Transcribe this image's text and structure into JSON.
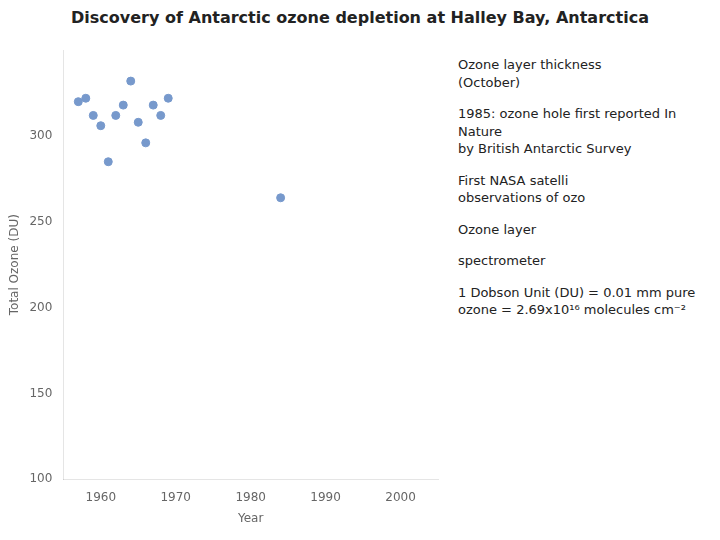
{
  "chart_data": {
    "type": "scatter",
    "title": "Discovery of Antarctic ozone depletion at Halley Bay, Antarctica",
    "xlabel": "Year",
    "ylabel": "Total Ozone (DU)",
    "x": [
      1957,
      1958,
      1959,
      1960,
      1961,
      1962,
      1963,
      1964,
      1965,
      1966,
      1967,
      1968,
      1969,
      1984
    ],
    "values": [
      320,
      322,
      312,
      306,
      285,
      312,
      318,
      332,
      308,
      296,
      318,
      312,
      322,
      264
    ],
    "color": "#7799cc",
    "xlim": [
      1955,
      2005
    ],
    "xticks": [
      1960,
      1970,
      1980,
      1990,
      2000
    ],
    "ylim": [
      100,
      350
    ],
    "yticks": [
      100,
      150,
      200,
      250,
      300
    ],
    "grid": false,
    "annotations": [
      "Ozone layer thickness\n(October)",
      "1985: ozone hole first reported In Nature\nby British Antarctic Survey",
      "First NASA satelli\nobservations of ozo",
      "Ozone layer",
      "spectrometer",
      "1 Dobson Unit (DU) = 0.01 mm pure ozone = 2.69x10¹⁶ molecules cm⁻²"
    ]
  }
}
